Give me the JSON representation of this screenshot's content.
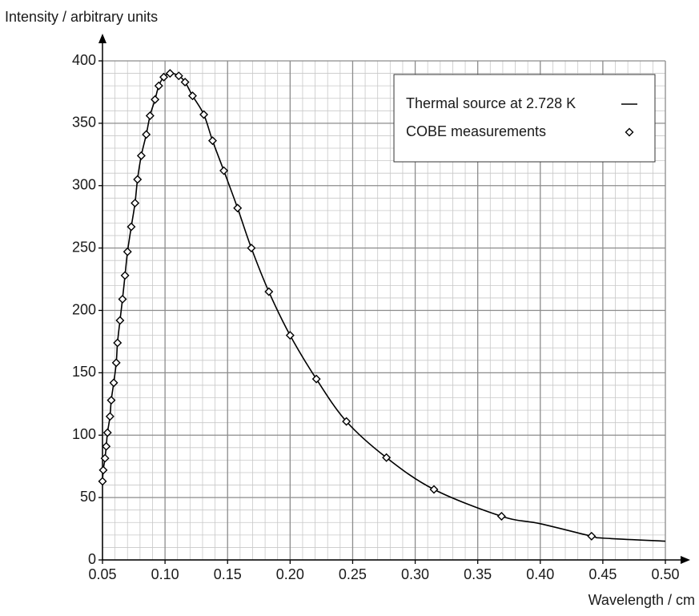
{
  "chart_data": {
    "type": "line",
    "xlabel": "Wavelength / cm",
    "ylabel": "Intensity / arbitrary units",
    "xlim": [
      0.05,
      0.5
    ],
    "ylim": [
      0,
      400
    ],
    "xticks": [
      {
        "value": 0.05,
        "label": "0.05"
      },
      {
        "value": 0.1,
        "label": "0.10"
      },
      {
        "value": 0.15,
        "label": "0.15"
      },
      {
        "value": 0.2,
        "label": "0.20"
      },
      {
        "value": 0.25,
        "label": "0.25"
      },
      {
        "value": 0.3,
        "label": "0.30"
      },
      {
        "value": 0.35,
        "label": "0.35"
      },
      {
        "value": 0.4,
        "label": "0.40"
      },
      {
        "value": 0.45,
        "label": "0.45"
      },
      {
        "value": 0.5,
        "label": "0.50"
      }
    ],
    "yticks": [
      0,
      50,
      100,
      150,
      200,
      250,
      300,
      350,
      400
    ],
    "grid": true,
    "legend": "upper right",
    "series": [
      {
        "name": "Thermal source at 2.728 K",
        "type": "line",
        "color": "#000000",
        "x": [
          0.05,
          0.0506,
          0.052,
          0.053,
          0.054,
          0.056,
          0.057,
          0.059,
          0.061,
          0.062,
          0.064,
          0.066,
          0.068,
          0.07,
          0.073,
          0.076,
          0.078,
          0.081,
          0.085,
          0.088,
          0.092,
          0.095,
          0.099,
          0.104,
          0.111,
          0.116,
          0.122,
          0.131,
          0.138,
          0.147,
          0.158,
          0.169,
          0.183,
          0.2,
          0.221,
          0.245,
          0.277,
          0.315,
          0.369,
          0.4,
          0.441,
          0.45,
          0.5
        ],
        "values": [
          63,
          72,
          81.5,
          91,
          102,
          115,
          128,
          142,
          158,
          174,
          192,
          209,
          228,
          247,
          267,
          286,
          305,
          324,
          341,
          356,
          369,
          380,
          387,
          390,
          388,
          383,
          372,
          357,
          336,
          312,
          282,
          250,
          215,
          180,
          145,
          111,
          82,
          56.5,
          35,
          29,
          19,
          17.5,
          15
        ]
      },
      {
        "name": "COBE measurements",
        "type": "scatter",
        "color": "#000000",
        "x": [
          0.05,
          0.0506,
          0.052,
          0.053,
          0.054,
          0.056,
          0.057,
          0.059,
          0.061,
          0.062,
          0.064,
          0.066,
          0.068,
          0.07,
          0.073,
          0.076,
          0.078,
          0.081,
          0.085,
          0.088,
          0.092,
          0.095,
          0.099,
          0.104,
          0.111,
          0.116,
          0.122,
          0.131,
          0.138,
          0.147,
          0.158,
          0.169,
          0.183,
          0.2,
          0.221,
          0.245,
          0.277,
          0.315,
          0.369,
          0.441
        ],
        "values": [
          63,
          72,
          81.5,
          91,
          102,
          115,
          128,
          142,
          158,
          174,
          192,
          209,
          228,
          247,
          267,
          286,
          305,
          324,
          341,
          356,
          369,
          380,
          387,
          390,
          388,
          383,
          372,
          357,
          336,
          312,
          282,
          250,
          215,
          180,
          145,
          111,
          82,
          56.5,
          35,
          19
        ]
      }
    ]
  }
}
